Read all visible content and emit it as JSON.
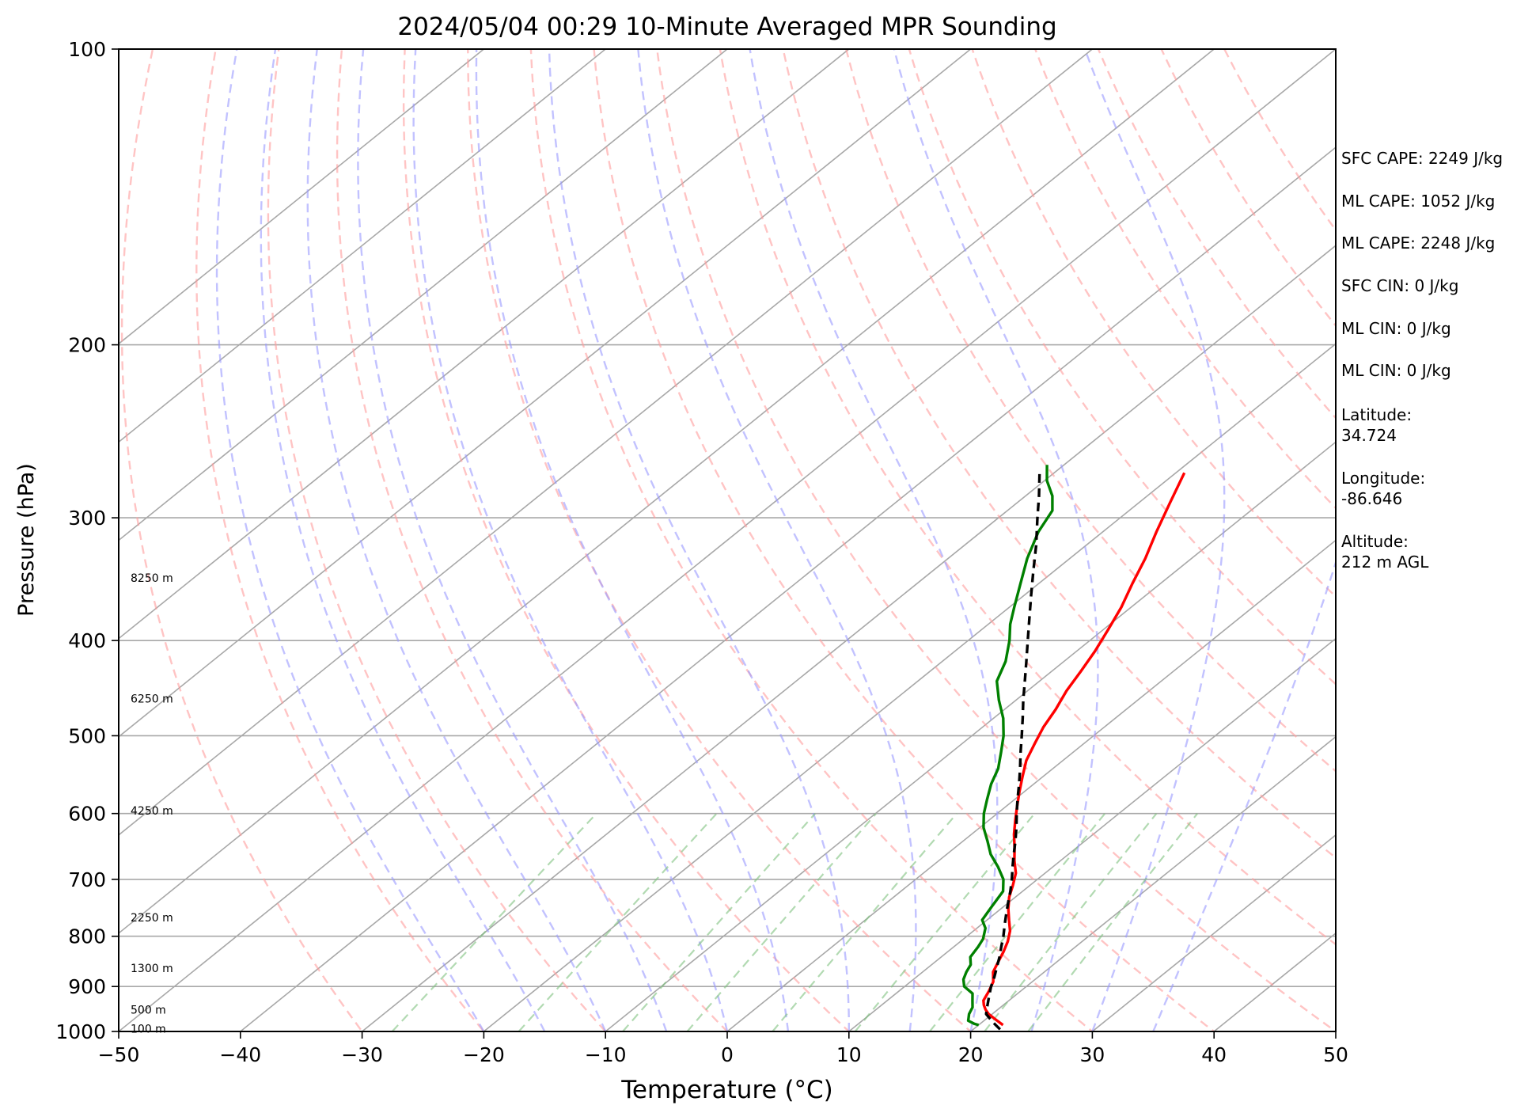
{
  "chart_data": {
    "type": "line",
    "title": "2024/05/04 00:29 10-Minute Averaged MPR Sounding",
    "xlabel": "Temperature (°C)",
    "ylabel": "Pressure (hPa)",
    "xlim": [
      -50,
      50
    ],
    "ylim": [
      1000,
      100
    ],
    "y_scale": "log",
    "x_ticks": [
      "−50",
      "−40",
      "−30",
      "−20",
      "−10",
      "0",
      "10",
      "20",
      "30",
      "40",
      "50"
    ],
    "x_tick_values": [
      -50,
      -40,
      -30,
      -20,
      -10,
      0,
      10,
      20,
      30,
      40,
      50
    ],
    "y_ticks": [
      "100",
      "200",
      "300",
      "400",
      "500",
      "600",
      "700",
      "800",
      "900",
      "1000"
    ],
    "y_tick_values": [
      100,
      200,
      300,
      400,
      500,
      600,
      700,
      800,
      900,
      1000
    ],
    "grid": "horizontal isobars",
    "skew": true,
    "height_labels": [
      {
        "text": "100 m",
        "p": 995
      },
      {
        "text": "500 m",
        "p": 952
      },
      {
        "text": "1300 m",
        "p": 864
      },
      {
        "text": "2250 m",
        "p": 767
      },
      {
        "text": "4250 m",
        "p": 597
      },
      {
        "text": "6250 m",
        "p": 459
      },
      {
        "text": "8250 m",
        "p": 346
      }
    ],
    "background_lines": {
      "isotherms_c": [
        -120,
        -110,
        -100,
        -90,
        -80,
        -70,
        -60,
        -50,
        -40,
        -30,
        -20,
        -10,
        0,
        10,
        20,
        30,
        40,
        50
      ],
      "dry_adiabats_c": [
        -30,
        -20,
        -10,
        0,
        10,
        20,
        30,
        40,
        50,
        60,
        70,
        80,
        90,
        100,
        110,
        120,
        130,
        140
      ],
      "moist_adiabats_c": [
        -20,
        -15,
        -10,
        -5,
        0,
        5,
        10,
        15,
        20,
        25,
        30,
        35
      ],
      "mixing_ratios_gkg": [
        0.4,
        1,
        2,
        3,
        5,
        8,
        12,
        16,
        20
      ]
    },
    "series": [
      {
        "role": "temperature",
        "color": "#ff0000",
        "p": [
          985,
          972,
          960,
          950,
          940,
          930,
          910,
          890,
          870,
          850,
          830,
          810,
          790,
          770,
          750,
          730,
          710,
          690,
          670,
          650,
          630,
          610,
          590,
          570,
          550,
          530,
          510,
          490,
          470,
          450,
          430,
          410,
          390,
          370,
          350,
          330,
          310,
          290,
          270
        ],
        "t": [
          22.0,
          20.8,
          19.7,
          19.0,
          18.4,
          17.9,
          17.4,
          16.8,
          15.8,
          15.2,
          14.6,
          13.9,
          13.0,
          11.8,
          10.6,
          9.5,
          8.6,
          7.6,
          6.2,
          4.9,
          3.5,
          2.2,
          0.9,
          -0.4,
          -1.7,
          -3.0,
          -4.0,
          -5.0,
          -5.8,
          -6.8,
          -7.6,
          -8.5,
          -9.6,
          -10.8,
          -12.3,
          -13.8,
          -15.6,
          -17.4,
          -19.3
        ]
      },
      {
        "role": "dewpoint",
        "color": "#008000",
        "p": [
          985,
          982,
          975,
          970,
          960,
          945,
          930,
          915,
          900,
          885,
          870,
          855,
          840,
          820,
          805,
          785,
          770,
          745,
          720,
          700,
          680,
          660,
          640,
          620,
          600,
          580,
          560,
          540,
          520,
          500,
          480,
          460,
          440,
          420,
          400,
          385,
          370,
          350,
          330,
          310,
          295,
          285,
          275,
          265
        ],
        "td": [
          20.0,
          19.5,
          18.7,
          18.5,
          18.1,
          17.7,
          17.0,
          16.3,
          14.9,
          14.1,
          13.6,
          13.2,
          12.4,
          12.0,
          11.6,
          10.7,
          9.6,
          9.0,
          8.4,
          7.2,
          5.5,
          3.6,
          2.0,
          0.3,
          -1.1,
          -2.3,
          -3.5,
          -4.5,
          -5.9,
          -7.4,
          -9.2,
          -11.4,
          -13.5,
          -14.8,
          -16.6,
          -18.2,
          -19.6,
          -21.5,
          -23.5,
          -25.3,
          -26.3,
          -27.8,
          -29.8,
          -31.4
        ]
      },
      {
        "role": "parcel",
        "color": "#000000",
        "style": "dashed",
        "p": [
          995,
          980,
          960,
          940,
          920,
          900,
          880,
          860,
          840,
          820,
          800,
          780,
          760,
          740,
          720,
          700,
          680,
          660,
          640,
          620,
          600,
          580,
          560,
          540,
          520,
          500,
          480,
          460,
          440,
          420,
          400,
          380,
          360,
          340,
          320,
          300,
          285,
          270
        ],
        "t": [
          22.2,
          21.0,
          19.5,
          18.7,
          17.9,
          17.1,
          16.4,
          15.6,
          14.8,
          13.9,
          13.0,
          12.0,
          11.0,
          10.0,
          9.0,
          7.9,
          6.7,
          5.5,
          4.3,
          3.0,
          1.6,
          0.2,
          -1.2,
          -2.7,
          -4.3,
          -5.9,
          -7.6,
          -9.4,
          -11.2,
          -13.1,
          -15.1,
          -17.2,
          -19.4,
          -21.7,
          -24.1,
          -26.8,
          -28.9,
          -31.2
        ]
      }
    ]
  },
  "stats": {
    "sfc_cape": "SFC CAPE: 2249 J/kg",
    "ml_cape_1": "ML CAPE: 1052 J/kg",
    "ml_cape_2": "ML CAPE: 2248 J/kg",
    "sfc_cin": "SFC CIN: 0 J/kg",
    "ml_cin_1": "ML CIN: 0 J/kg",
    "ml_cin_2": "ML CIN: 0 J/kg",
    "latitude_label": "Latitude:",
    "latitude_value": "34.724",
    "longitude_label": "Longitude:",
    "longitude_value": "-86.646",
    "altitude_label": "Altitude:",
    "altitude_value": "212 m AGL"
  }
}
